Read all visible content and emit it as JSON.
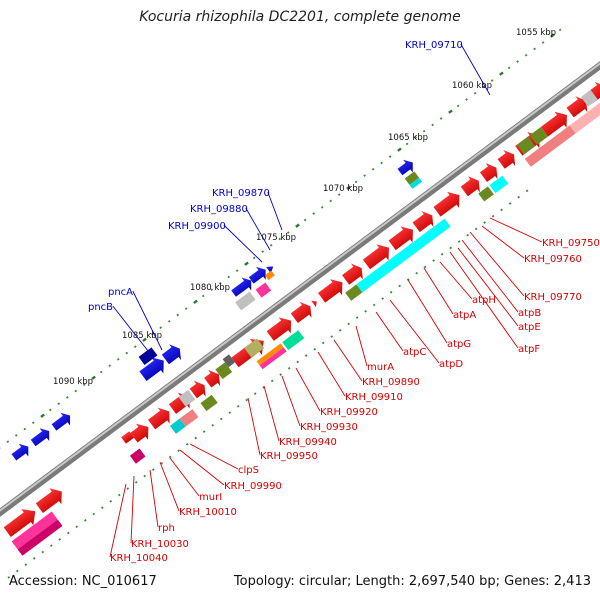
{
  "title": "Kocuria rhizophila DC2201, complete genome",
  "footer": {
    "accession": "Accession: NC_010617",
    "stats": "Topology: circular; Length: 2,697,540 bp; Genes: 2,413"
  },
  "colors": {
    "backbone": "#8a8a8a",
    "tick_major": "#2a7a2a",
    "tick_minor": "#3a8a3a",
    "red_label": "#d40000",
    "blue_label": "#0000cc"
  },
  "scale_ticks": [
    "1055 kbp",
    "1060 kbp",
    "1065 kbp",
    "1070 kbp",
    "1075 kbp",
    "1080 kbp",
    "1085 kbp",
    "1090 kbp"
  ],
  "reverse_gene_labels": [
    "KRH_09750",
    "KRH_09760",
    "KRH_09770",
    "atpB",
    "atpE",
    "atpF",
    "atpH",
    "atpA",
    "atpG",
    "atpD",
    "atpC",
    "murA",
    "KRH_09890",
    "KRH_09910",
    "KRH_09920",
    "KRH_09930",
    "KRH_09940",
    "KRH_09950",
    "clpS",
    "KRH_09990",
    "murI",
    "KRH_10010",
    "rph",
    "KRH_10030",
    "KRH_10040"
  ],
  "forward_gene_labels": [
    "KRH_09710",
    "KRH_09870",
    "KRH_09880",
    "KRH_09900",
    "pncA",
    "pncB"
  ]
}
